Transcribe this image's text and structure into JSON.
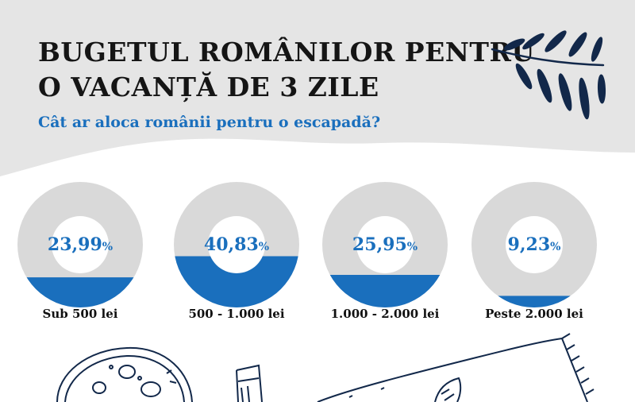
{
  "title_line1": "BUGETUL ROMÂNILOR PENTRU",
  "title_line2": "O VACANȚĂ DE 3 ZILE",
  "subtitle": "Cât ar aloca românii pentru o escapadă?",
  "colors": {
    "header_bg": "#e5e5e5",
    "ring_gray": "#d9d9d9",
    "fill_blue": "#1a6fbd",
    "navy": "#12284a"
  },
  "chart_data": {
    "type": "pie",
    "categories": [
      "Sub 500 lei",
      "500 - 1.000 lei",
      "1.000 - 2.000 lei",
      "Peste 2.000 lei"
    ],
    "values": [
      23.99,
      40.83,
      25.95,
      9.23
    ],
    "value_labels": [
      "23,99",
      "40,83",
      "25,95",
      "9,23"
    ],
    "unit": "%",
    "style": "donut with fill level from bottom"
  }
}
